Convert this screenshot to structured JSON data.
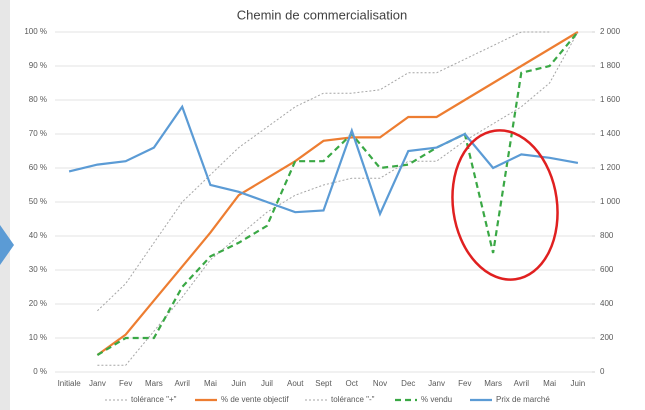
{
  "chart_data": {
    "type": "line",
    "title": "Chemin de commercialisation",
    "categories": [
      "Initiale",
      "Janv",
      "Fev",
      "Mars",
      "Avril",
      "Mai",
      "Juin",
      "Juil",
      "Aout",
      "Sept",
      "Oct",
      "Nov",
      "Dec",
      "Janv",
      "Fev",
      "Mars",
      "Avril",
      "Mai",
      "Juin"
    ],
    "ylim": [
      0,
      100
    ],
    "yticks": [
      {
        "value": 0,
        "label": "0 %"
      },
      {
        "value": 10,
        "label": "10 %"
      },
      {
        "value": 20,
        "label": "20 %"
      },
      {
        "value": 30,
        "label": "30 %"
      },
      {
        "value": 40,
        "label": "40 %"
      },
      {
        "value": 50,
        "label": "50 %"
      },
      {
        "value": 60,
        "label": "60 %"
      },
      {
        "value": 70,
        "label": "70 %"
      },
      {
        "value": 80,
        "label": "80 %"
      },
      {
        "value": 90,
        "label": "90 %"
      },
      {
        "value": 100,
        "label": "100 %"
      }
    ],
    "y2lim": [
      0,
      2000
    ],
    "y2ticks": [
      0,
      200,
      400,
      600,
      800,
      {
        "value": 1000,
        "label": "1 000"
      },
      {
        "value": 1200,
        "label": "1 200"
      },
      {
        "value": 1400,
        "label": "1 400"
      },
      {
        "value": 1600,
        "label": "1 600"
      },
      {
        "value": 1800,
        "label": "1 800"
      },
      {
        "value": 2000,
        "label": "2 000"
      }
    ],
    "grid": true,
    "legend": "bottom",
    "series": [
      {
        "name": "tolérance \"+\"",
        "color": "#a6a6a6",
        "dash": "dotted",
        "values": [
          null,
          18,
          26,
          38,
          50,
          58,
          66,
          72,
          78,
          82,
          82,
          83,
          88,
          88,
          92,
          96,
          100,
          100,
          null
        ]
      },
      {
        "name": "% de vente objectif",
        "color": "#ed7d31",
        "dash": "solid",
        "values": [
          null,
          5,
          11,
          21,
          31,
          41,
          52,
          57,
          62,
          68,
          69,
          69,
          75,
          75,
          80,
          85,
          90,
          95,
          100
        ]
      },
      {
        "name": "tolérance \"-\"",
        "color": "#a6a6a6",
        "dash": "dotted",
        "values": [
          null,
          2,
          2,
          12,
          22,
          33,
          40,
          47,
          52,
          55,
          57,
          57,
          62,
          62,
          68,
          73,
          78,
          85,
          100
        ]
      },
      {
        "name": "% vendu",
        "color": "#3aa845",
        "dash": "dashed",
        "values": [
          null,
          5,
          10,
          10,
          25,
          34,
          38,
          43,
          62,
          62,
          70,
          60,
          61,
          66,
          70,
          35,
          88,
          90,
          100
        ]
      },
      {
        "name": "Prix de marché",
        "color": "#5b9bd5",
        "dash": "solid",
        "axis": "y2",
        "values": [
          1180,
          1220,
          1240,
          1320,
          1560,
          1100,
          1060,
          1000,
          940,
          950,
          1420,
          930,
          1300,
          1320,
          1400,
          1200,
          1280,
          1260,
          1230
        ]
      }
    ]
  }
}
